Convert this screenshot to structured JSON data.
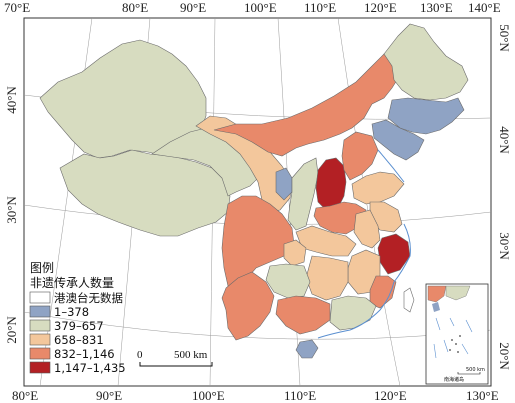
{
  "map": {
    "top_lon_labels": [
      "70°E",
      "80°E",
      "90°E",
      "100°E",
      "110°E",
      "120°E",
      "130°E",
      "140°E"
    ],
    "bottom_lon_labels": [
      "80°E",
      "90°E",
      "100°E",
      "110°E",
      "120°E",
      "130°E"
    ],
    "left_lat_labels": [
      "40°N",
      "30°N",
      "20°N"
    ],
    "right_lat_labels": [
      "50°N",
      "40°N",
      "30°N",
      "20°N"
    ]
  },
  "legend": {
    "heading": "图例",
    "subtitle": "非遗传承人数量",
    "classes": [
      {
        "label": "港澳台无数据",
        "color": "#ffffff"
      },
      {
        "label": "1–378",
        "color": "#8fa3c4"
      },
      {
        "label": "379–657",
        "color": "#d7dcc0"
      },
      {
        "label": "658–831",
        "color": "#f3c79c"
      },
      {
        "label": "832–1,146",
        "color": "#e8896a"
      },
      {
        "label": "1,147–1,435",
        "color": "#b32024"
      }
    ]
  },
  "scale_bar": {
    "start": "0",
    "end": "500 km"
  },
  "inset": {
    "scale": "500 km",
    "caption": "南海诸岛"
  }
}
